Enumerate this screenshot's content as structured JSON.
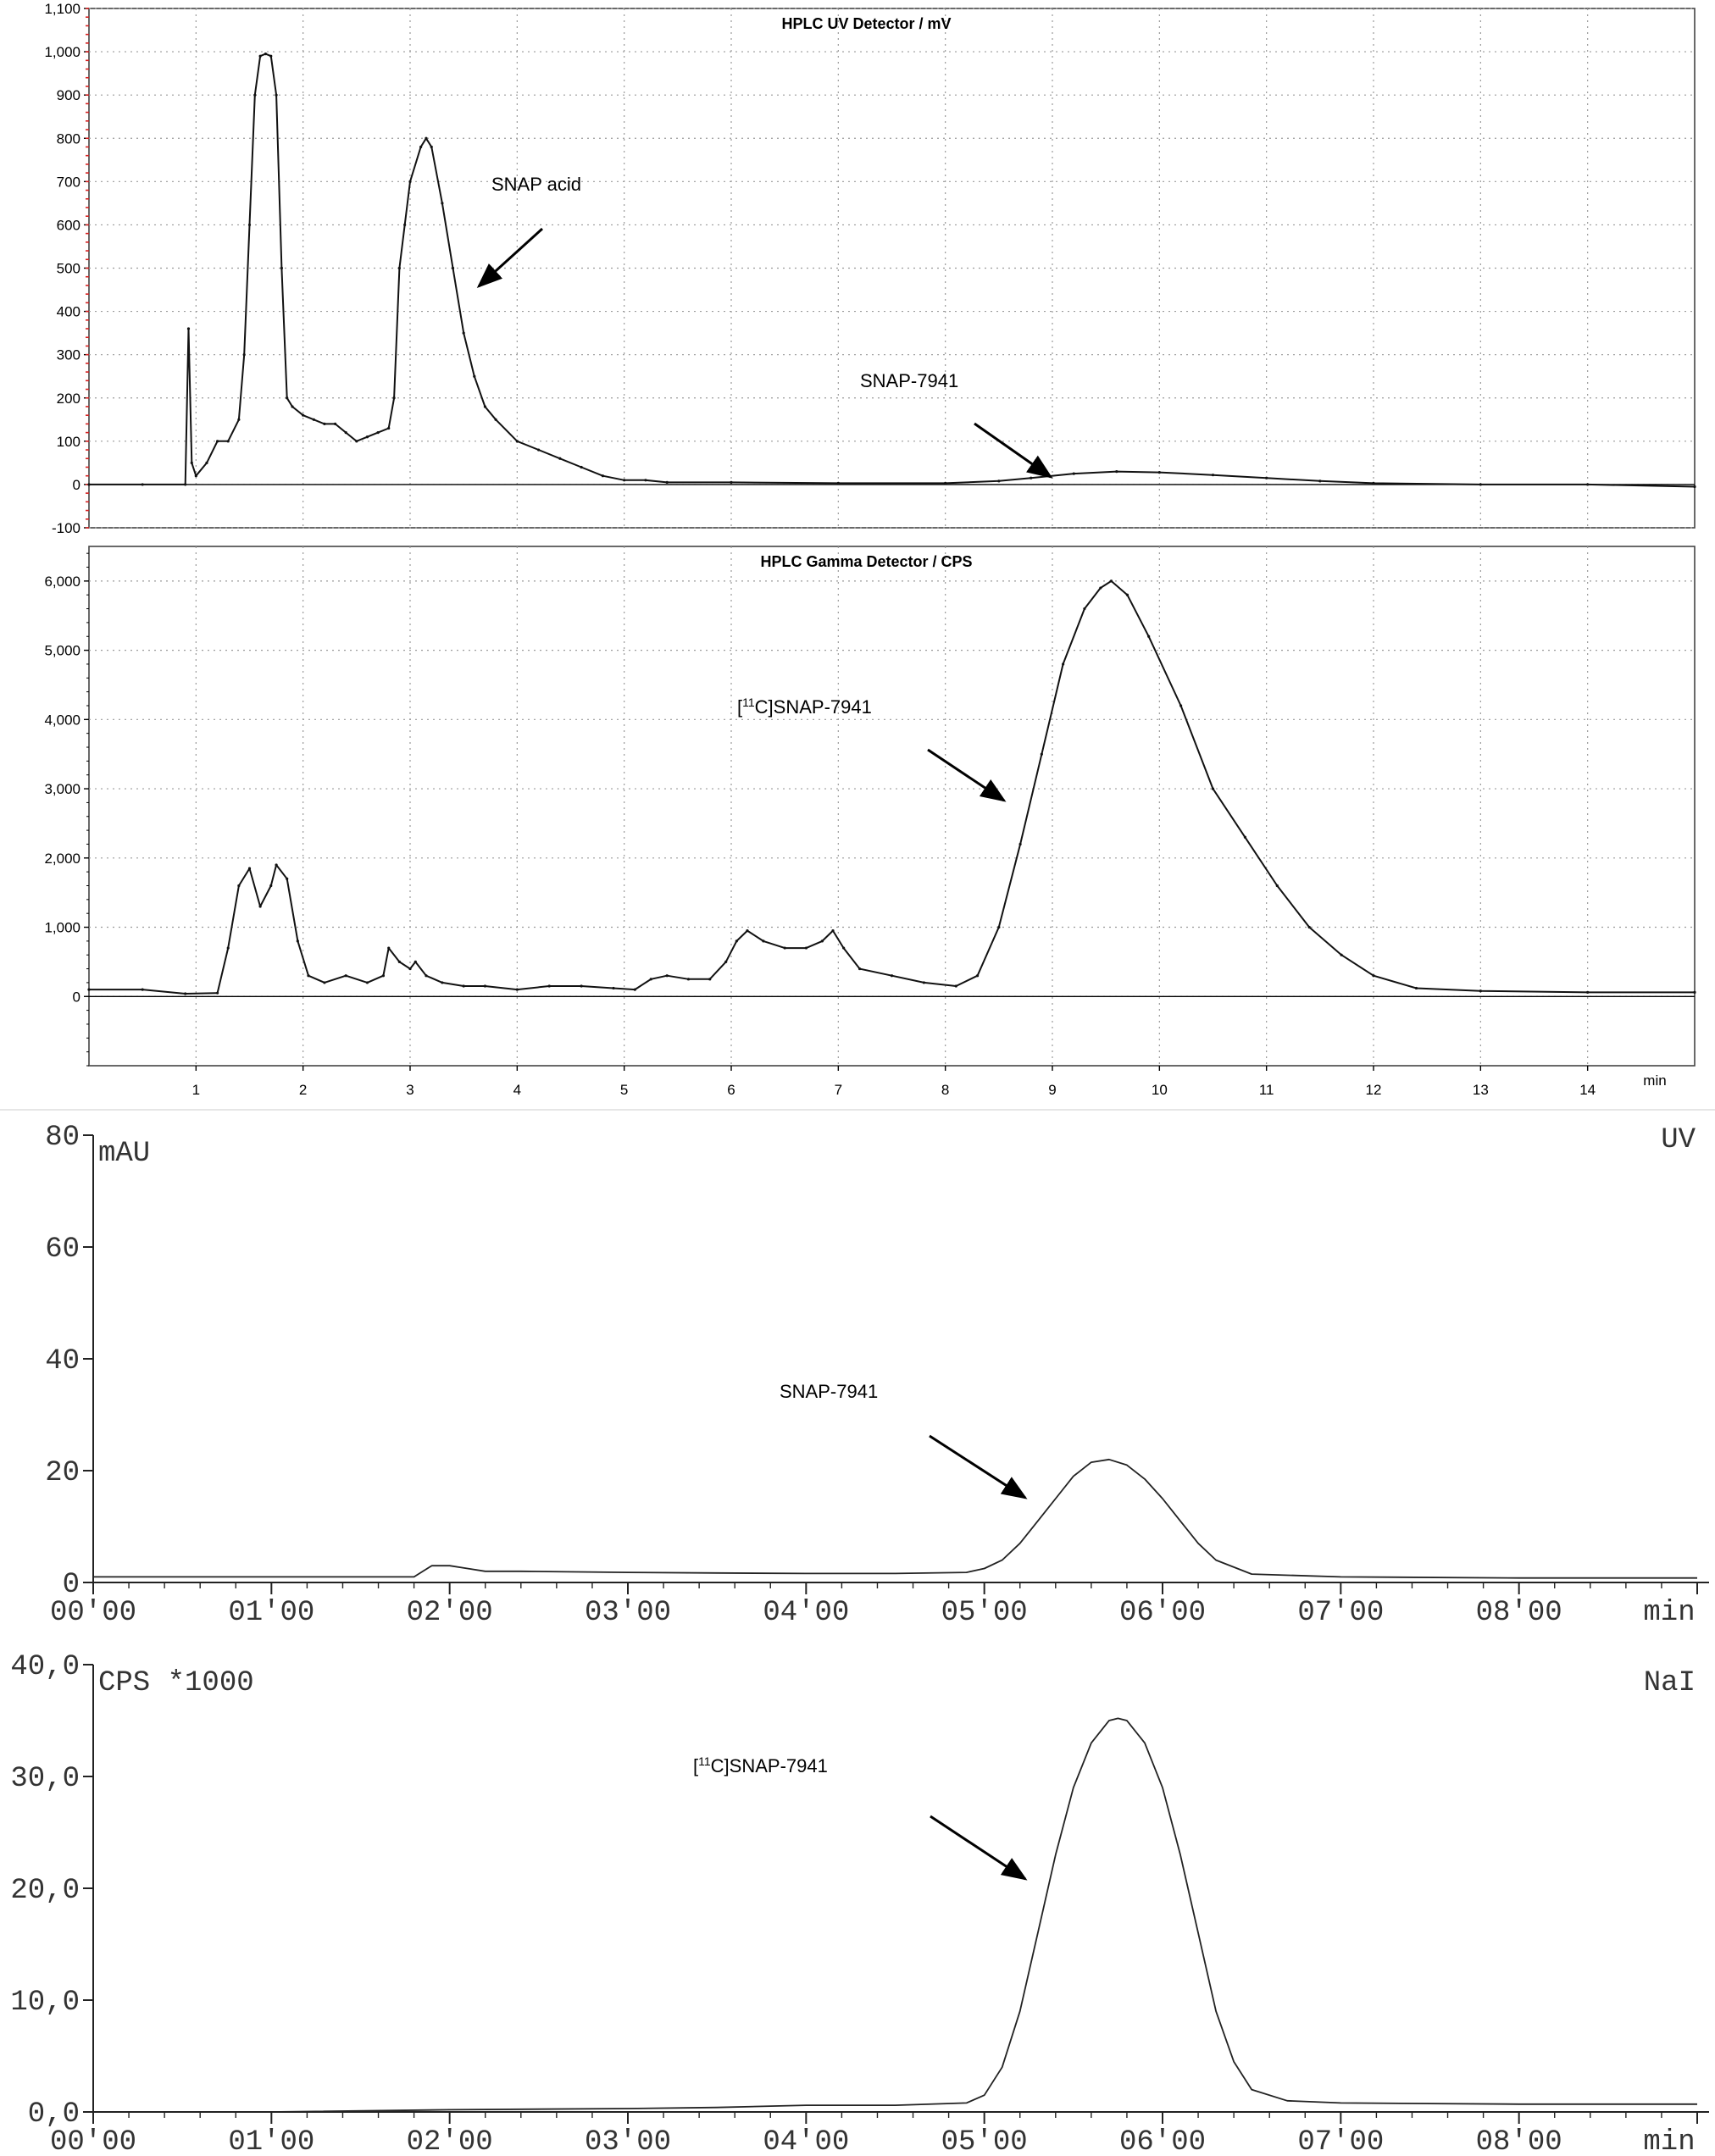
{
  "colors": {
    "trace": "#111111",
    "frame": "#444444",
    "grid": "#9a9a9a",
    "red_ticks": "#d42020"
  },
  "chart_data": [
    {
      "type": "line",
      "title": "HPLC UV Detector / mV",
      "xlim": [
        0,
        15
      ],
      "ylim": [
        -100,
        1100
      ],
      "y_ticks": [
        "-100",
        "0",
        "100",
        "200",
        "300",
        "400",
        "500",
        "600",
        "700",
        "800",
        "900",
        "1,000",
        "1,100"
      ],
      "grid": true,
      "annotations": [
        {
          "text": "SNAP acid",
          "x": 3.6,
          "y": 700
        },
        {
          "text": "SNAP-7941",
          "x": 8.9,
          "y": 30
        }
      ],
      "series": [
        {
          "x": [
            0,
            0.5,
            0.9,
            0.93,
            0.96,
            1.0,
            1.1,
            1.2,
            1.3,
            1.4,
            1.45,
            1.5,
            1.55,
            1.6,
            1.65,
            1.7,
            1.75,
            1.8,
            1.85,
            1.9,
            2.0,
            2.1,
            2.2,
            2.3,
            2.4,
            2.5,
            2.6,
            2.7,
            2.8,
            2.85,
            2.9,
            2.95,
            3.0,
            3.1,
            3.15,
            3.2,
            3.3,
            3.4,
            3.5,
            3.6,
            3.7,
            3.8,
            4.0,
            4.2,
            4.4,
            4.6,
            4.8,
            5.0,
            5.2,
            5.4,
            6.0,
            7.0,
            8.0,
            8.5,
            8.8,
            9.2,
            9.6,
            10.0,
            10.5,
            11.0,
            11.5,
            12.0,
            13.0,
            14.0,
            15.0
          ],
          "values": [
            0,
            0,
            0,
            360,
            50,
            20,
            50,
            100,
            100,
            150,
            300,
            600,
            900,
            990,
            995,
            990,
            900,
            500,
            200,
            180,
            160,
            150,
            140,
            140,
            120,
            100,
            110,
            120,
            130,
            200,
            500,
            600,
            700,
            780,
            800,
            780,
            650,
            500,
            350,
            250,
            180,
            150,
            100,
            80,
            60,
            40,
            20,
            10,
            10,
            5,
            5,
            3,
            3,
            8,
            15,
            25,
            30,
            28,
            22,
            15,
            8,
            3,
            0,
            0,
            -5
          ]
        }
      ]
    },
    {
      "type": "line",
      "title": "HPLC Gamma Detector / CPS",
      "xlim": [
        0,
        15
      ],
      "ylim": [
        -1000,
        6500
      ],
      "x_ticks": [
        "1",
        "2",
        "3",
        "4",
        "5",
        "6",
        "7",
        "8",
        "9",
        "10",
        "11",
        "12",
        "13",
        "14"
      ],
      "xlabel": "min",
      "y_ticks": [
        "0",
        "1,000",
        "2,000",
        "3,000",
        "4,000",
        "5,000",
        "6,000"
      ],
      "grid": true,
      "annotations": [
        {
          "text": "[11C]SNAP-7941",
          "x": 8.5,
          "y": 3100
        }
      ],
      "series": [
        {
          "x": [
            0,
            0.5,
            0.9,
            1.2,
            1.3,
            1.4,
            1.5,
            1.6,
            1.7,
            1.75,
            1.85,
            1.95,
            2.05,
            2.2,
            2.4,
            2.6,
            2.75,
            2.8,
            2.9,
            3.0,
            3.05,
            3.15,
            3.3,
            3.5,
            3.7,
            4.0,
            4.3,
            4.6,
            4.9,
            5.1,
            5.25,
            5.4,
            5.6,
            5.8,
            5.95,
            6.05,
            6.15,
            6.3,
            6.5,
            6.7,
            6.85,
            6.95,
            7.05,
            7.2,
            7.5,
            7.8,
            8.1,
            8.3,
            8.5,
            8.7,
            8.9,
            9.1,
            9.3,
            9.45,
            9.55,
            9.7,
            9.9,
            10.2,
            10.5,
            10.8,
            11.1,
            11.4,
            11.7,
            12.0,
            12.4,
            13.0,
            14.0,
            15.0
          ],
          "values": [
            100,
            100,
            40,
            50,
            700,
            1600,
            1850,
            1300,
            1600,
            1900,
            1700,
            800,
            300,
            200,
            300,
            200,
            300,
            700,
            500,
            400,
            500,
            300,
            200,
            150,
            150,
            100,
            150,
            150,
            120,
            100,
            250,
            300,
            250,
            250,
            500,
            800,
            950,
            800,
            700,
            700,
            800,
            950,
            700,
            400,
            300,
            200,
            150,
            300,
            1000,
            2200,
            3500,
            4800,
            5600,
            5900,
            6000,
            5800,
            5200,
            4200,
            3000,
            2300,
            1600,
            1000,
            600,
            300,
            120,
            80,
            60,
            60
          ]
        }
      ]
    },
    {
      "type": "line",
      "ylabel": "mAU",
      "ylim": [
        0,
        80
      ],
      "xlim": [
        0,
        9
      ],
      "x_ticks": [
        "00'00",
        "01'00",
        "02'00",
        "03'00",
        "04'00",
        "05'00",
        "06'00",
        "07'00",
        "08'00"
      ],
      "xlabel": "min",
      "y_ticks": [
        "0",
        "20",
        "40",
        "60",
        "80"
      ],
      "corner_label": "UV",
      "grid": false,
      "annotations": [
        {
          "text": "SNAP-7941",
          "x": 5.4,
          "y": 16
        }
      ],
      "series": [
        {
          "x": [
            0,
            1,
            1.8,
            1.85,
            1.9,
            2.0,
            2.1,
            2.2,
            2.4,
            3.0,
            3.5,
            4.0,
            4.5,
            4.9,
            5.0,
            5.1,
            5.2,
            5.3,
            5.4,
            5.5,
            5.6,
            5.7,
            5.8,
            5.9,
            6.0,
            6.1,
            6.2,
            6.3,
            6.5,
            7.0,
            8.0,
            9.0
          ],
          "values": [
            1,
            1,
            1,
            2,
            3,
            3,
            2.5,
            2,
            2,
            1.8,
            1.7,
            1.6,
            1.6,
            1.8,
            2.5,
            4,
            7,
            11,
            15,
            19,
            21.5,
            22,
            21,
            18.5,
            15,
            11,
            7,
            4,
            1.5,
            1,
            0.8,
            0.8
          ]
        }
      ]
    },
    {
      "type": "line",
      "ylabel": "CPS *1000",
      "ylim": [
        0,
        40
      ],
      "xlim": [
        0,
        9
      ],
      "x_ticks": [
        "00'00",
        "01'00",
        "02'00",
        "03'00",
        "04'00",
        "05'00",
        "06'00",
        "07'00",
        "08'00"
      ],
      "xlabel": "min",
      "y_ticks": [
        "0,0",
        "10,0",
        "20,0",
        "30,0",
        "40,0"
      ],
      "corner_label": "NaI",
      "grid": false,
      "annotations": [
        {
          "text": "[11C]SNAP-7941",
          "x": 5.4,
          "y": 20
        }
      ],
      "series": [
        {
          "x": [
            0,
            1,
            2,
            3,
            3.5,
            4.0,
            4.5,
            4.9,
            5.0,
            5.1,
            5.2,
            5.3,
            5.4,
            5.5,
            5.6,
            5.7,
            5.75,
            5.8,
            5.9,
            6.0,
            6.1,
            6.2,
            6.3,
            6.4,
            6.5,
            6.7,
            7.0,
            8.0,
            9.0
          ],
          "values": [
            0,
            0,
            0.2,
            0.3,
            0.4,
            0.6,
            0.6,
            0.8,
            1.5,
            4,
            9,
            16,
            23,
            29,
            33,
            35,
            35.2,
            35,
            33,
            29,
            23,
            16,
            9,
            4.5,
            2,
            1,
            0.8,
            0.7,
            0.7
          ]
        }
      ]
    }
  ]
}
